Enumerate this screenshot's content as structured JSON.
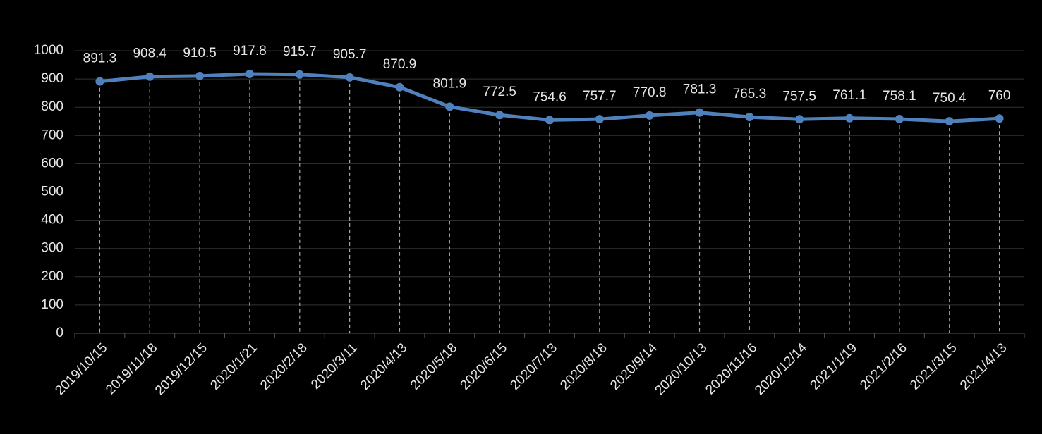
{
  "chart_data": {
    "type": "line",
    "categories": [
      "2019/10/15",
      "2019/11/18",
      "2019/12/15",
      "2020/1/21",
      "2020/2/18",
      "2020/3/11",
      "2020/4/13",
      "2020/5/18",
      "2020/6/15",
      "2020/7/13",
      "2020/8/18",
      "2020/9/14",
      "2020/10/13",
      "2020/11/16",
      "2020/12/14",
      "2021/1/19",
      "2021/2/16",
      "2021/3/15",
      "2021/4/13"
    ],
    "values": [
      891.3,
      908.4,
      910.5,
      917.8,
      915.7,
      905.7,
      870.9,
      801.9,
      772.5,
      754.6,
      757.7,
      770.8,
      781.3,
      765.3,
      757.5,
      761.1,
      758.1,
      750.4,
      760
    ],
    "color": "#4f81bd",
    "ylim": [
      0,
      1000
    ],
    "yticks": [
      0,
      100,
      200,
      300,
      400,
      500,
      600,
      700,
      800,
      900,
      1000
    ],
    "grid": true
  }
}
